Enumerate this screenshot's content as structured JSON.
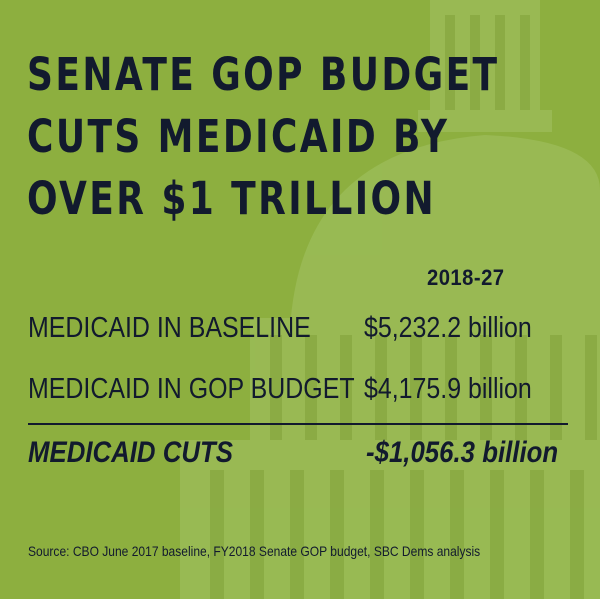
{
  "title_lines": [
    "SENATE GOP BUDGET",
    "CUTS MEDICAID BY",
    "OVER $1 TRILLION"
  ],
  "table": {
    "column_header": "2018-27",
    "rows": [
      {
        "label": "MEDICAID IN BASELINE",
        "value": "$5,232.2 billion"
      },
      {
        "label": "MEDICAID IN GOP BUDGET",
        "value": "$4,175.9 billion"
      }
    ],
    "total": {
      "label": "MEDICAID CUTS",
      "value": "-$1,056.3 billion"
    }
  },
  "source": "Source: CBO June 2017 baseline, FY2018 Senate GOP budget, SBC Dems analysis",
  "colors": {
    "background": "#8daf3f",
    "text": "#121a2e",
    "capitol_tint": "#a6c46a"
  },
  "background_image": "us-capitol-dome"
}
